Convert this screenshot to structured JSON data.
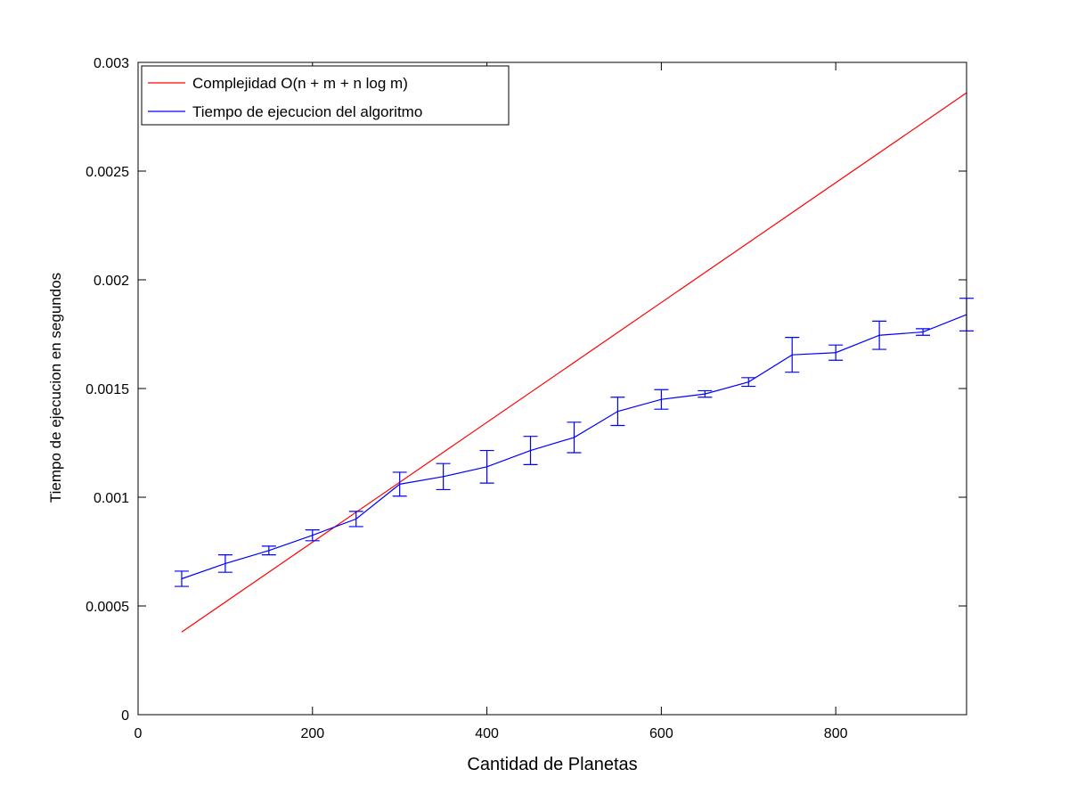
{
  "chart_data": {
    "type": "line",
    "title": "",
    "xlabel": "Cantidad de Planetas",
    "ylabel": "Tiempo de ejecucion en segundos",
    "xlim": [
      0,
      950
    ],
    "ylim": [
      0,
      0.003
    ],
    "xticks": [
      0,
      200,
      400,
      600,
      800
    ],
    "xtick_labels": [
      "0",
      "200",
      "400",
      "600",
      "800"
    ],
    "yticks": [
      0,
      0.0005,
      0.001,
      0.0015,
      0.002,
      0.0025,
      0.003
    ],
    "ytick_labels": [
      "0",
      "0.0005",
      "0.001",
      "0.0015",
      "0.002",
      "0.0025",
      "0.003"
    ],
    "grid": false,
    "legend_position": "top-left",
    "series": [
      {
        "name": "Complejidad O(n + m + n log m)",
        "color": "#ff0000",
        "x": [
          50,
          950
        ],
        "y": [
          0.00038,
          0.00286
        ]
      },
      {
        "name": "Tiempo de ejecucion del algoritmo",
        "color": "#0000ff",
        "x": [
          50,
          100,
          150,
          200,
          250,
          300,
          350,
          400,
          450,
          500,
          550,
          600,
          650,
          700,
          750,
          800,
          850,
          900,
          950
        ],
        "y": [
          0.000625,
          0.000695,
          0.000755,
          0.000825,
          0.0009,
          0.00106,
          0.001095,
          0.00114,
          0.001215,
          0.001275,
          0.001395,
          0.00145,
          0.001475,
          0.00153,
          0.001655,
          0.001665,
          0.001745,
          0.00176,
          0.00184
        ],
        "err": [
          3.5e-05,
          4e-05,
          2e-05,
          2.5e-05,
          3.5e-05,
          5.5e-05,
          6e-05,
          7.5e-05,
          6.5e-05,
          7e-05,
          6.5e-05,
          4.5e-05,
          1.5e-05,
          2e-05,
          8e-05,
          3.5e-05,
          6.5e-05,
          1.5e-05,
          7.5e-05
        ]
      }
    ]
  }
}
